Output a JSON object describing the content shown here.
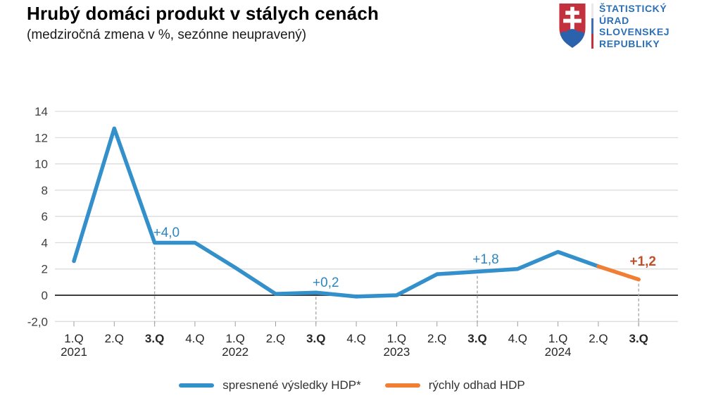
{
  "header": {
    "title": "Hrubý domáci produkt v stálych cenách",
    "subtitle": "(medziročná zmena v %, sezónne neupravený)"
  },
  "logo": {
    "lines": [
      "ŠTATISTICKÝ",
      "ÚRAD",
      "SLOVENSKEJ",
      "REPUBLIKY"
    ],
    "text_color": "#2b70b7",
    "shield_red": "#c2313c",
    "shield_blue": "#2a62ae"
  },
  "legend": [
    {
      "label": "spresnené výsledky HDP*",
      "color": "#3390cb"
    },
    {
      "label": "rýchly odhad HDP",
      "color": "#f07f35"
    }
  ],
  "chart_data": {
    "type": "line",
    "title": "Hrubý domáci produkt v stálych cenách",
    "subtitle": "(medziročná zmena v %, sezónne neupravený)",
    "ylabel": "medziročná zmena v %",
    "ylim": [
      -2,
      14
    ],
    "grid": "horizontal",
    "categories": [
      "1.Q 2021",
      "2.Q 2021",
      "3.Q 2021",
      "4.Q 2021",
      "1.Q 2022",
      "2.Q 2022",
      "3.Q 2022",
      "4.Q 2022",
      "1.Q 2023",
      "2.Q 2023",
      "3.Q 2023",
      "4.Q 2023",
      "1.Q 2024",
      "2.Q 2024",
      "3.Q 2024"
    ],
    "x_tick_labels": [
      {
        "q": "1.Q",
        "year": "2021"
      },
      {
        "q": "2.Q"
      },
      {
        "q": "3.Q",
        "bold": true
      },
      {
        "q": "4.Q"
      },
      {
        "q": "1.Q",
        "year": "2022"
      },
      {
        "q": "2.Q"
      },
      {
        "q": "3.Q",
        "bold": true
      },
      {
        "q": "4.Q"
      },
      {
        "q": "1.Q",
        "year": "2023"
      },
      {
        "q": "2.Q"
      },
      {
        "q": "3.Q",
        "bold": true
      },
      {
        "q": "4.Q"
      },
      {
        "q": "1.Q",
        "year": "2024"
      },
      {
        "q": "2.Q"
      },
      {
        "q": "3.Q",
        "bold": true
      }
    ],
    "yticks": [
      14,
      12,
      10,
      8,
      6,
      4,
      2,
      0,
      -2
    ],
    "ytick_labels": [
      "14",
      "12",
      "10",
      "8",
      "6",
      "4",
      "2",
      "0",
      "-2,0"
    ],
    "series": [
      {
        "name": "spresnené výsledky HDP*",
        "color": "#3390cb",
        "values": [
          2.6,
          12.7,
          4.0,
          4.0,
          2.1,
          0.1,
          0.2,
          -0.1,
          0.0,
          1.6,
          1.8,
          2.0,
          3.3,
          2.2
        ]
      },
      {
        "name": "rýchly odhad HDP",
        "color": "#f07f35",
        "x_indices": [
          13,
          14
        ],
        "values": [
          2.2,
          1.2
        ]
      }
    ],
    "annotations": [
      {
        "index": 2,
        "text": "+4,0",
        "color": "#2e86c4",
        "bold": false
      },
      {
        "index": 6,
        "text": "+0,2",
        "color": "#2e86c4",
        "bold": false
      },
      {
        "index": 10,
        "text": "+1,8",
        "color": "#2e86c4",
        "bold": false
      },
      {
        "index": 14,
        "text": "+1,2",
        "color": "#c0502b",
        "bold": true
      }
    ],
    "dashed_marker_indices": [
      2,
      6,
      10,
      14
    ],
    "axis_colors": {
      "grid": "#d9d9d9",
      "zero_line": "#3d3d3d",
      "dashed": "#a9a9a9",
      "tick": "#9d9d9d",
      "label": "#333333"
    }
  }
}
